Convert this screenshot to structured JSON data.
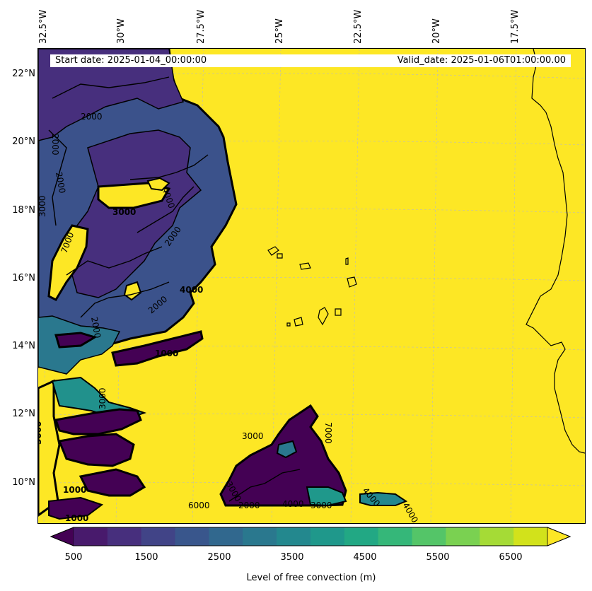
{
  "header": {
    "start_date": "Start date: 2025-01-04_00:00:00",
    "valid_date": "Valid_date: 2025-01-06T01:00:00.00"
  },
  "axes": {
    "longitude_labels": [
      "32.5°W",
      "30°W",
      "27.5°W",
      "25°W",
      "22.5°W",
      "20°W",
      "17.5°W"
    ],
    "latitude_labels": [
      "22°N",
      "20°N",
      "18°N",
      "16°N",
      "14°N",
      "12°N",
      "10°N"
    ]
  },
  "contour_labels": [
    "2000",
    "2000",
    "2000",
    "2000",
    "2000",
    "2000",
    "3000",
    "3000",
    "4000",
    "4000",
    "1000",
    "7000",
    "7000",
    "3000",
    "3000",
    "6000",
    "5000",
    "1000",
    "1000",
    "3000",
    "4000",
    "2000",
    "3000",
    "4000",
    "4000"
  ],
  "colorbar": {
    "title": "Level of free convection (m)",
    "tick_labels": [
      "500",
      "1500",
      "2500",
      "3500",
      "4500",
      "5500",
      "6500"
    ],
    "levels": [
      500,
      1000,
      1500,
      2000,
      2500,
      3000,
      3500,
      4000,
      4500,
      5000,
      5500,
      6000,
      6500,
      7000
    ],
    "colors": [
      "#440154",
      "#481a6c",
      "#472f7d",
      "#414487",
      "#39568c",
      "#31688e",
      "#2a788e",
      "#23888e",
      "#1f988b",
      "#22a884",
      "#35b779",
      "#54c568",
      "#7ad151",
      "#a5db36",
      "#d2e21b",
      "#fde725"
    ]
  }
}
